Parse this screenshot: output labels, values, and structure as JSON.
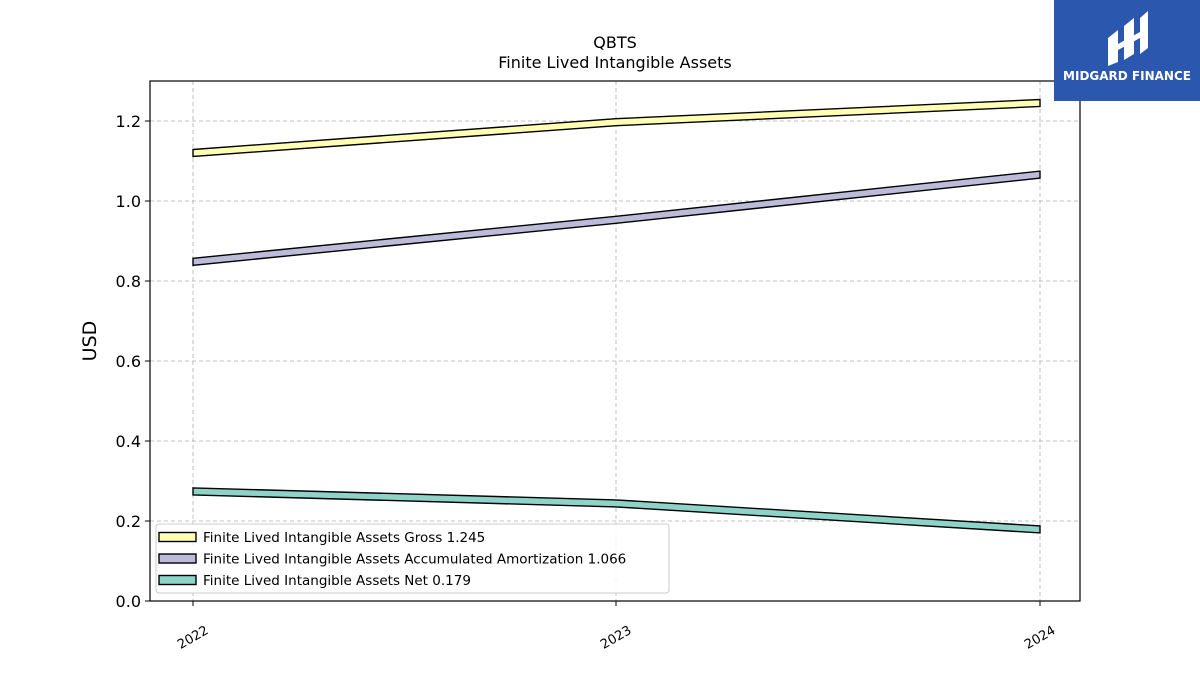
{
  "logo": {
    "brand_name": "MIDGARD FINANCE",
    "background_color": "#2b57ae",
    "icon": "midgard-logo-icon"
  },
  "chart_data": {
    "type": "line",
    "title": "QBTS",
    "subtitle": "Finite Lived Intangible Assets",
    "xlabel": "",
    "ylabel": "USD",
    "categories": [
      "2022",
      "2023",
      "2024"
    ],
    "ylim": [
      0,
      1.3
    ],
    "yticks": [
      "0.0",
      "0.2",
      "0.4",
      "0.6",
      "0.8",
      "1.0",
      "1.2"
    ],
    "grid": true,
    "legend_position": "lower-left",
    "series": [
      {
        "name": "Finite Lived Intangible Assets Gross",
        "legend_label": "Finite Lived Intangible Assets Gross  1.245",
        "values": [
          1.12,
          1.197,
          1.245
        ],
        "color": "#ffffb3"
      },
      {
        "name": "Finite Lived Intangible Assets Accumulated Amortization",
        "legend_label": "Finite Lived Intangible Assets Accumulated Amortization  1.066",
        "values": [
          0.848,
          0.953,
          1.066
        ],
        "color": "#bebada"
      },
      {
        "name": "Finite Lived Intangible Assets Net",
        "legend_label": "Finite Lived Intangible Assets Net  0.179",
        "values": [
          0.274,
          0.244,
          0.179
        ],
        "color": "#8dd3c7"
      }
    ]
  }
}
